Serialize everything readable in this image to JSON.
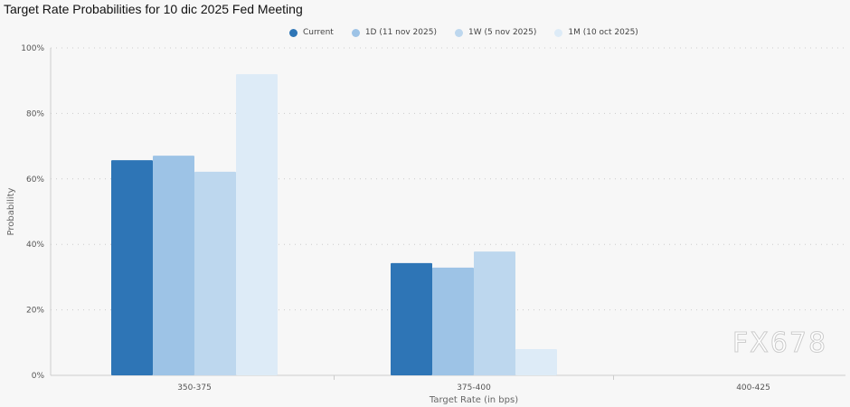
{
  "title": "Target Rate Probabilities for 10 dic 2025 Fed Meeting",
  "watermark": "FX678",
  "chart_data": {
    "type": "bar",
    "title": "Target Rate Probabilities for 10 dic 2025 Fed Meeting",
    "xlabel": "Target Rate (in bps)",
    "ylabel": "Probability",
    "ylim": [
      0,
      100
    ],
    "yticks": [
      "0%",
      "20%",
      "40%",
      "60%",
      "80%",
      "100%"
    ],
    "grid": true,
    "legend_position": "top",
    "categories": [
      "350-375",
      "375-400",
      "400-425"
    ],
    "series": [
      {
        "name": "Current",
        "color": "#2e75b6",
        "values": [
          65.7,
          34.3,
          0
        ]
      },
      {
        "name": "1D (11 nov 2025)",
        "color": "#9dc3e6",
        "values": [
          67.1,
          32.9,
          0
        ]
      },
      {
        "name": "1W (5 nov 2025)",
        "color": "#bdd7ee",
        "values": [
          62.2,
          37.8,
          0
        ]
      },
      {
        "name": "1M (10 oct 2025)",
        "color": "#ddebf7",
        "values": [
          92.0,
          8.0,
          0
        ]
      }
    ]
  }
}
